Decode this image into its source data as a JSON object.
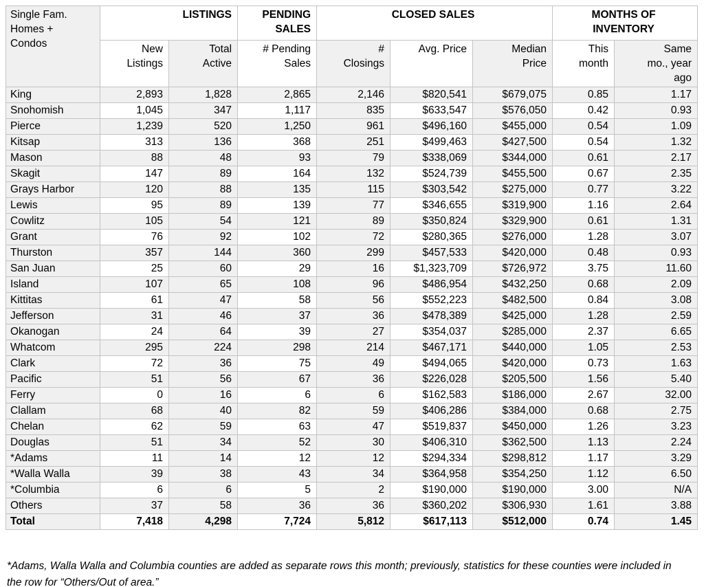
{
  "table": {
    "corner_label": "Single Fam.\nHomes +\nCondos",
    "column_groups": [
      {
        "label": "LISTINGS",
        "span": 2
      },
      {
        "label": "PENDING\nSALES",
        "span": 1
      },
      {
        "label": "CLOSED SALES",
        "span": 3
      },
      {
        "label": "MONTHS OF\nINVENTORY",
        "span": 2
      }
    ],
    "subheaders": [
      "New\nListings",
      "Total\nActive",
      "# Pending\nSales",
      "#\nClosings",
      "Avg. Price",
      "Median\nPrice",
      "This\nmonth",
      "Same\nmo., year\nago"
    ],
    "rows": [
      {
        "county": "King",
        "values": [
          "2,893",
          "1,828",
          "2,865",
          "2,146",
          "$820,541",
          "$679,075",
          "0.85",
          "1.17"
        ]
      },
      {
        "county": "Snohomish",
        "values": [
          "1,045",
          "347",
          "1,117",
          "835",
          "$633,547",
          "$576,050",
          "0.42",
          "0.93"
        ]
      },
      {
        "county": "Pierce",
        "values": [
          "1,239",
          "520",
          "1,250",
          "961",
          "$496,160",
          "$455,000",
          "0.54",
          "1.09"
        ]
      },
      {
        "county": "Kitsap",
        "values": [
          "313",
          "136",
          "368",
          "251",
          "$499,463",
          "$427,500",
          "0.54",
          "1.32"
        ]
      },
      {
        "county": "Mason",
        "values": [
          "88",
          "48",
          "93",
          "79",
          "$338,069",
          "$344,000",
          "0.61",
          "2.17"
        ]
      },
      {
        "county": "Skagit",
        "values": [
          "147",
          "89",
          "164",
          "132",
          "$524,739",
          "$455,500",
          "0.67",
          "2.35"
        ]
      },
      {
        "county": "Grays Harbor",
        "values": [
          "120",
          "88",
          "135",
          "115",
          "$303,542",
          "$275,000",
          "0.77",
          "3.22"
        ]
      },
      {
        "county": "Lewis",
        "values": [
          "95",
          "89",
          "139",
          "77",
          "$346,655",
          "$319,900",
          "1.16",
          "2.64"
        ]
      },
      {
        "county": "Cowlitz",
        "values": [
          "105",
          "54",
          "121",
          "89",
          "$350,824",
          "$329,900",
          "0.61",
          "1.31"
        ]
      },
      {
        "county": "Grant",
        "values": [
          "76",
          "92",
          "102",
          "72",
          "$280,365",
          "$276,000",
          "1.28",
          "3.07"
        ]
      },
      {
        "county": "Thurston",
        "values": [
          "357",
          "144",
          "360",
          "299",
          "$457,533",
          "$420,000",
          "0.48",
          "0.93"
        ]
      },
      {
        "county": "San Juan",
        "values": [
          "25",
          "60",
          "29",
          "16",
          "$1,323,709",
          "$726,972",
          "3.75",
          "11.60"
        ]
      },
      {
        "county": "Island",
        "values": [
          "107",
          "65",
          "108",
          "96",
          "$486,954",
          "$432,250",
          "0.68",
          "2.09"
        ]
      },
      {
        "county": "Kittitas",
        "values": [
          "61",
          "47",
          "58",
          "56",
          "$552,223",
          "$482,500",
          "0.84",
          "3.08"
        ]
      },
      {
        "county": "Jefferson",
        "values": [
          "31",
          "46",
          "37",
          "36",
          "$478,389",
          "$425,000",
          "1.28",
          "2.59"
        ]
      },
      {
        "county": "Okanogan",
        "values": [
          "24",
          "64",
          "39",
          "27",
          "$354,037",
          "$285,000",
          "2.37",
          "6.65"
        ]
      },
      {
        "county": "Whatcom",
        "values": [
          "295",
          "224",
          "298",
          "214",
          "$467,171",
          "$440,000",
          "1.05",
          "2.53"
        ]
      },
      {
        "county": "Clark",
        "values": [
          "72",
          "36",
          "75",
          "49",
          "$494,065",
          "$420,000",
          "0.73",
          "1.63"
        ]
      },
      {
        "county": "Pacific",
        "values": [
          "51",
          "56",
          "67",
          "36",
          "$226,028",
          "$205,500",
          "1.56",
          "5.40"
        ]
      },
      {
        "county": "Ferry",
        "values": [
          "0",
          "16",
          "6",
          "6",
          "$162,583",
          "$186,000",
          "2.67",
          "32.00"
        ]
      },
      {
        "county": "Clallam",
        "values": [
          "68",
          "40",
          "82",
          "59",
          "$406,286",
          "$384,000",
          "0.68",
          "2.75"
        ]
      },
      {
        "county": "Chelan",
        "values": [
          "62",
          "59",
          "63",
          "47",
          "$519,837",
          "$450,000",
          "1.26",
          "3.23"
        ]
      },
      {
        "county": "Douglas",
        "values": [
          "51",
          "34",
          "52",
          "30",
          "$406,310",
          "$362,500",
          "1.13",
          "2.24"
        ]
      },
      {
        "county": "*Adams",
        "values": [
          "11",
          "14",
          "12",
          "12",
          "$294,334",
          "$298,812",
          "1.17",
          "3.29"
        ]
      },
      {
        "county": "*Walla Walla",
        "values": [
          "39",
          "38",
          "43",
          "34",
          "$364,958",
          "$354,250",
          "1.12",
          "6.50"
        ]
      },
      {
        "county": "*Columbia",
        "values": [
          "6",
          "6",
          "5",
          "2",
          "$190,000",
          "$190,000",
          "3.00",
          "N/A"
        ]
      },
      {
        "county": "Others",
        "values": [
          "37",
          "58",
          "36",
          "36",
          "$360,202",
          "$306,930",
          "1.61",
          "3.88"
        ]
      }
    ],
    "total_row": {
      "county": "Total",
      "values": [
        "7,418",
        "4,298",
        "7,724",
        "5,812",
        "$617,113",
        "$512,000",
        "0.74",
        "1.45"
      ]
    }
  },
  "footnote": "*Adams, Walla Walla and Columbia counties are added as separate rows this month; previously, statistics for these counties were included in the row for “Others/Out of area.”",
  "colors": {
    "shade": "#f0f0f0",
    "border": "#c3c3c3"
  }
}
